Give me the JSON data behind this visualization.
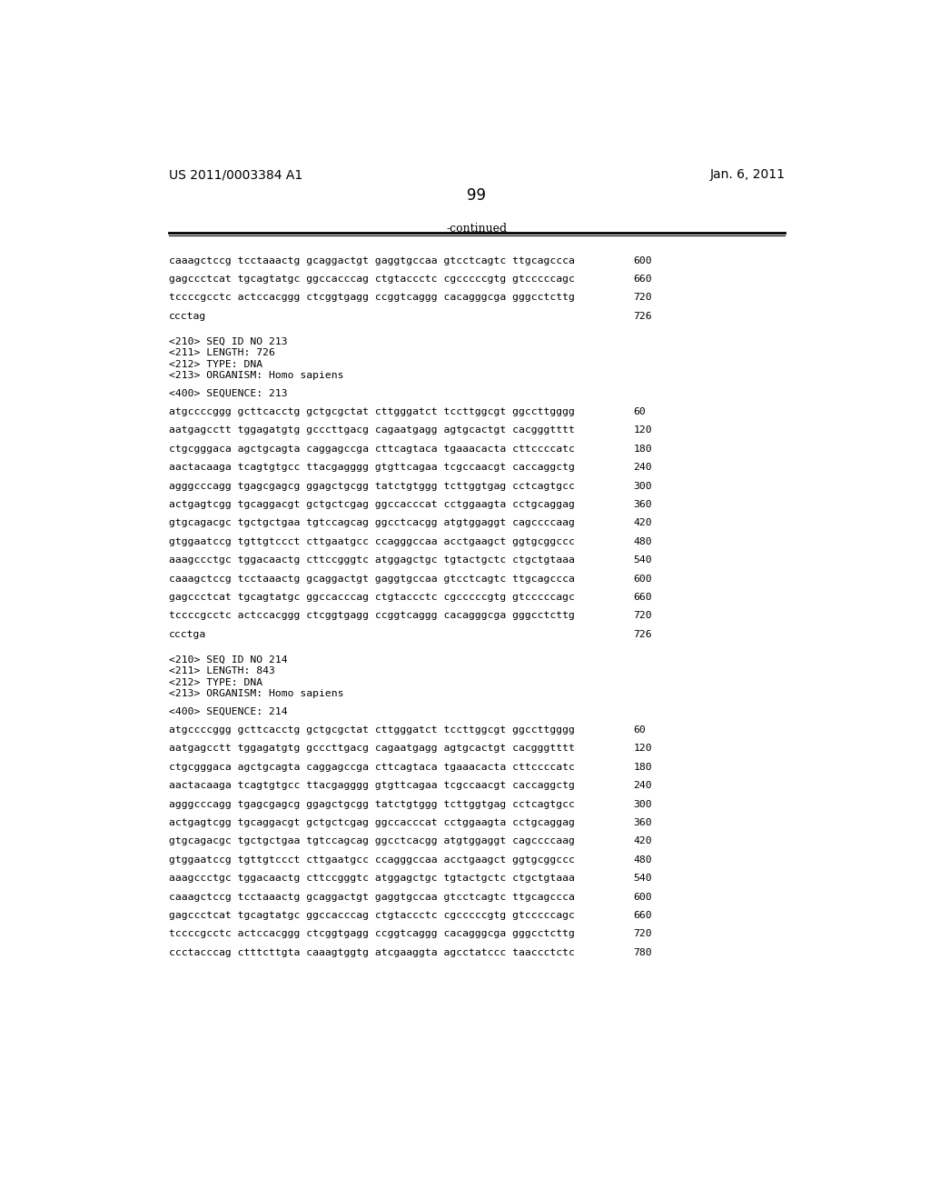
{
  "header_left": "US 2011/0003384 A1",
  "header_right": "Jan. 6, 2011",
  "page_number": "99",
  "continued_label": "-continued",
  "background_color": "#ffffff",
  "text_color": "#000000",
  "lines": [
    {
      "text": "caaagctccg tcctaaactg gcaggactgt gaggtgccaa gtcctcagtc ttgcagccca",
      "num": "600",
      "type": "seq"
    },
    {
      "text": "gagccctcat tgcagtatgc ggccacccag ctgtaccctc cgcccccgtg gtcccccagc",
      "num": "660",
      "type": "seq"
    },
    {
      "text": "tccccgcctc actccacggg ctcggtgagg ccggtcaggg cacagggcga gggcctcttg",
      "num": "720",
      "type": "seq"
    },
    {
      "text": "ccctag",
      "num": "726",
      "type": "seq"
    },
    {
      "text": "",
      "num": "",
      "type": "blank"
    },
    {
      "text": "<210> SEQ ID NO 213",
      "num": "",
      "type": "meta"
    },
    {
      "text": "<211> LENGTH: 726",
      "num": "",
      "type": "meta"
    },
    {
      "text": "<212> TYPE: DNA",
      "num": "",
      "type": "meta"
    },
    {
      "text": "<213> ORGANISM: Homo sapiens",
      "num": "",
      "type": "meta"
    },
    {
      "text": "",
      "num": "",
      "type": "blank"
    },
    {
      "text": "<400> SEQUENCE: 213",
      "num": "",
      "type": "meta"
    },
    {
      "text": "",
      "num": "",
      "type": "blank"
    },
    {
      "text": "atgccccggg gcttcacctg gctgcgctat cttgggatct tccttggcgt ggccttgggg",
      "num": "60",
      "type": "seq"
    },
    {
      "text": "aatgagcctt tggagatgtg gcccttgacg cagaatgagg agtgcactgt cacgggtttt",
      "num": "120",
      "type": "seq"
    },
    {
      "text": "ctgcgggaca agctgcagta caggagccga cttcagtaca tgaaacacta cttccccatc",
      "num": "180",
      "type": "seq"
    },
    {
      "text": "aactacaaga tcagtgtgcc ttacgagggg gtgttcagaa tcgccaacgt caccaggctg",
      "num": "240",
      "type": "seq"
    },
    {
      "text": "agggcccagg tgagcgagcg ggagctgcgg tatctgtggg tcttggtgag cctcagtgcc",
      "num": "300",
      "type": "seq"
    },
    {
      "text": "actgagtcgg tgcaggacgt gctgctcgag ggccacccat cctggaagta cctgcaggag",
      "num": "360",
      "type": "seq"
    },
    {
      "text": "gtgcagacgc tgctgctgaa tgtccagcag ggcctcacgg atgtggaggt cagccccaag",
      "num": "420",
      "type": "seq"
    },
    {
      "text": "gtggaatccg tgttgtccct cttgaatgcc ccagggccaa acctgaagct ggtgcggccc",
      "num": "480",
      "type": "seq"
    },
    {
      "text": "aaagccctgc tggacaactg cttccgggtc atggagctgc tgtactgctc ctgctgtaaa",
      "num": "540",
      "type": "seq"
    },
    {
      "text": "caaagctccg tcctaaactg gcaggactgt gaggtgccaa gtcctcagtc ttgcagccca",
      "num": "600",
      "type": "seq"
    },
    {
      "text": "gagccctcat tgcagtatgc ggccacccag ctgtaccctc cgcccccgtg gtcccccagc",
      "num": "660",
      "type": "seq"
    },
    {
      "text": "tccccgcctc actccacggg ctcggtgagg ccggtcaggg cacagggcga gggcctcttg",
      "num": "720",
      "type": "seq"
    },
    {
      "text": "ccctga",
      "num": "726",
      "type": "seq"
    },
    {
      "text": "",
      "num": "",
      "type": "blank"
    },
    {
      "text": "<210> SEQ ID NO 214",
      "num": "",
      "type": "meta"
    },
    {
      "text": "<211> LENGTH: 843",
      "num": "",
      "type": "meta"
    },
    {
      "text": "<212> TYPE: DNA",
      "num": "",
      "type": "meta"
    },
    {
      "text": "<213> ORGANISM: Homo sapiens",
      "num": "",
      "type": "meta"
    },
    {
      "text": "",
      "num": "",
      "type": "blank"
    },
    {
      "text": "<400> SEQUENCE: 214",
      "num": "",
      "type": "meta"
    },
    {
      "text": "",
      "num": "",
      "type": "blank"
    },
    {
      "text": "atgccccggg gcttcacctg gctgcgctat cttgggatct tccttggcgt ggccttgggg",
      "num": "60",
      "type": "seq"
    },
    {
      "text": "aatgagcctt tggagatgtg gcccttgacg cagaatgagg agtgcactgt cacgggtttt",
      "num": "120",
      "type": "seq"
    },
    {
      "text": "ctgcgggaca agctgcagta caggagccga cttcagtaca tgaaacacta cttccccatc",
      "num": "180",
      "type": "seq"
    },
    {
      "text": "aactacaaga tcagtgtgcc ttacgagggg gtgttcagaa tcgccaacgt caccaggctg",
      "num": "240",
      "type": "seq"
    },
    {
      "text": "agggcccagg tgagcgagcg ggagctgcgg tatctgtggg tcttggtgag cctcagtgcc",
      "num": "300",
      "type": "seq"
    },
    {
      "text": "actgagtcgg tgcaggacgt gctgctcgag ggccacccat cctggaagta cctgcaggag",
      "num": "360",
      "type": "seq"
    },
    {
      "text": "gtgcagacgc tgctgctgaa tgtccagcag ggcctcacgg atgtggaggt cagccccaag",
      "num": "420",
      "type": "seq"
    },
    {
      "text": "gtggaatccg tgttgtccct cttgaatgcc ccagggccaa acctgaagct ggtgcggccc",
      "num": "480",
      "type": "seq"
    },
    {
      "text": "aaagccctgc tggacaactg cttccgggtc atggagctgc tgtactgctc ctgctgtaaa",
      "num": "540",
      "type": "seq"
    },
    {
      "text": "caaagctccg tcctaaactg gcaggactgt gaggtgccaa gtcctcagtc ttgcagccca",
      "num": "600",
      "type": "seq"
    },
    {
      "text": "gagccctcat tgcagtatgc ggccacccag ctgtaccctc cgcccccgtg gtcccccagc",
      "num": "660",
      "type": "seq"
    },
    {
      "text": "tccccgcctc actccacggg ctcggtgagg ccggtcaggg cacagggcga gggcctcttg",
      "num": "720",
      "type": "seq"
    },
    {
      "text": "ccctacccag ctttcttgta caaagtggtg atcgaaggta agcctatccc taaccctctc",
      "num": "780",
      "type": "seq"
    }
  ]
}
